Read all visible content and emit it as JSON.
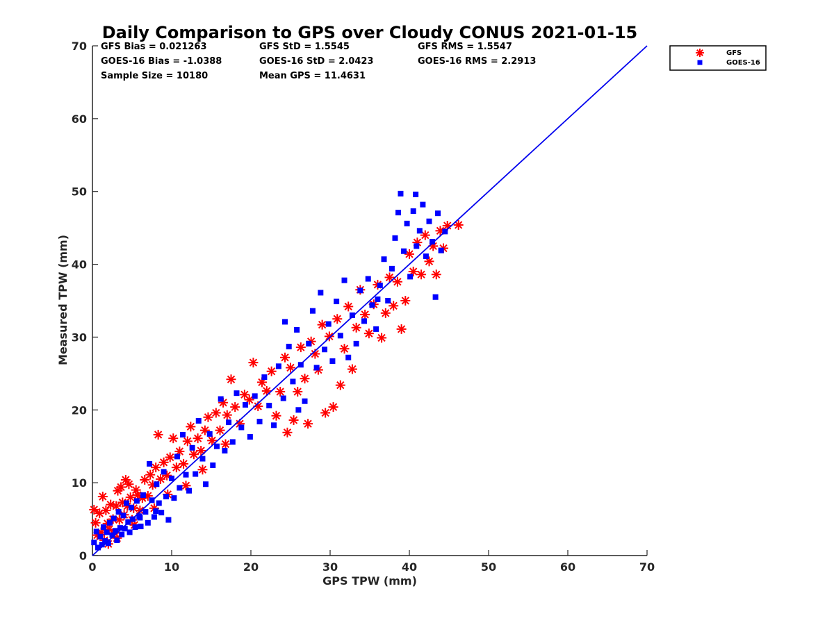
{
  "chart_data": {
    "type": "scatter",
    "title": "Daily Comparison to GPS over Cloudy CONUS 2021-01-15",
    "xlabel": "GPS TPW (mm)",
    "ylabel": "Measured TPW (mm)",
    "xlim": [
      0,
      70
    ],
    "ylim": [
      0,
      70
    ],
    "xticks": [
      "0",
      "10",
      "20",
      "30",
      "40",
      "50",
      "60",
      "70"
    ],
    "yticks": [
      "0",
      "10",
      "20",
      "30",
      "40",
      "50",
      "60",
      "70"
    ],
    "grid": false,
    "legend_position": "outside top-right",
    "stats": [
      "GFS Bias = 0.021263",
      "GFS StD = 1.5545",
      "GFS RMS = 1.5547",
      "GOES-16 Bias = -1.0388",
      "GOES-16 StD = 2.0423",
      "GOES-16 RMS = 2.2913",
      "Sample Size = 10180",
      "Mean GPS = 11.4631"
    ],
    "reference_line": {
      "x": [
        0,
        70
      ],
      "y": [
        0,
        70
      ],
      "color": "#0000ee"
    },
    "series": [
      {
        "name": "GFS",
        "marker": "asterisk",
        "color": "#ff0000",
        "points": [
          [
            0.2,
            6.3
          ],
          [
            0.4,
            4.5
          ],
          [
            0.6,
            2.8
          ],
          [
            0.9,
            5.8
          ],
          [
            1.1,
            3.2
          ],
          [
            1.3,
            8.1
          ],
          [
            1.5,
            2.1
          ],
          [
            1.7,
            6.2
          ],
          [
            1.9,
            4.4
          ],
          [
            2.1,
            3.6
          ],
          [
            2.3,
            7.0
          ],
          [
            2.6,
            5.0
          ],
          [
            2.8,
            3.1
          ],
          [
            3.0,
            6.8
          ],
          [
            3.2,
            8.9
          ],
          [
            3.4,
            4.9
          ],
          [
            3.6,
            9.4
          ],
          [
            3.8,
            7.3
          ],
          [
            4.0,
            5.6
          ],
          [
            4.2,
            10.4
          ],
          [
            4.4,
            6.8
          ],
          [
            4.6,
            9.8
          ],
          [
            4.8,
            8.0
          ],
          [
            5.0,
            4.9
          ],
          [
            5.2,
            6.5
          ],
          [
            5.5,
            9.0
          ],
          [
            5.7,
            8.3
          ],
          [
            6.0,
            6.2
          ],
          [
            6.3,
            7.9
          ],
          [
            6.6,
            10.4
          ],
          [
            7.0,
            8.2
          ],
          [
            7.3,
            11.1
          ],
          [
            7.6,
            9.7
          ],
          [
            8.0,
            12.1
          ],
          [
            8.3,
            16.6
          ],
          [
            8.6,
            10.5
          ],
          [
            9.0,
            12.8
          ],
          [
            9.4,
            11.0
          ],
          [
            9.8,
            13.5
          ],
          [
            10.2,
            16.1
          ],
          [
            10.6,
            12.1
          ],
          [
            11.0,
            14.3
          ],
          [
            11.5,
            12.6
          ],
          [
            12.0,
            15.7
          ],
          [
            12.4,
            17.7
          ],
          [
            12.8,
            13.9
          ],
          [
            13.3,
            16.1
          ],
          [
            13.7,
            14.4
          ],
          [
            14.2,
            17.2
          ],
          [
            14.6,
            19.0
          ],
          [
            15.1,
            15.8
          ],
          [
            15.6,
            19.6
          ],
          [
            16.1,
            17.2
          ],
          [
            16.5,
            21.0
          ],
          [
            17.0,
            19.3
          ],
          [
            17.5,
            24.2
          ],
          [
            18.0,
            20.4
          ],
          [
            18.6,
            18.1
          ],
          [
            19.2,
            22.1
          ],
          [
            19.8,
            21.4
          ],
          [
            20.3,
            26.5
          ],
          [
            20.9,
            20.5
          ],
          [
            21.4,
            23.8
          ],
          [
            22.0,
            22.6
          ],
          [
            22.6,
            25.3
          ],
          [
            23.2,
            19.2
          ],
          [
            23.7,
            22.5
          ],
          [
            24.3,
            27.2
          ],
          [
            24.6,
            16.9
          ],
          [
            25.0,
            25.8
          ],
          [
            25.4,
            18.6
          ],
          [
            25.9,
            22.5
          ],
          [
            26.3,
            28.6
          ],
          [
            26.8,
            24.3
          ],
          [
            27.2,
            18.1
          ],
          [
            27.6,
            29.4
          ],
          [
            28.1,
            27.7
          ],
          [
            28.5,
            25.5
          ],
          [
            29.0,
            31.7
          ],
          [
            29.4,
            19.6
          ],
          [
            29.9,
            30.1
          ],
          [
            30.4,
            20.4
          ],
          [
            30.9,
            32.5
          ],
          [
            31.3,
            23.4
          ],
          [
            31.8,
            28.4
          ],
          [
            32.3,
            34.2
          ],
          [
            32.8,
            25.6
          ],
          [
            33.3,
            31.3
          ],
          [
            33.8,
            36.5
          ],
          [
            34.4,
            33.1
          ],
          [
            34.9,
            30.5
          ],
          [
            35.5,
            34.5
          ],
          [
            36.0,
            37.2
          ],
          [
            36.5,
            29.9
          ],
          [
            37.0,
            33.3
          ],
          [
            37.5,
            38.2
          ],
          [
            38.0,
            34.3
          ],
          [
            38.5,
            37.6
          ],
          [
            39.0,
            31.1
          ],
          [
            39.5,
            35.0
          ],
          [
            40.0,
            41.4
          ],
          [
            40.5,
            39.0
          ],
          [
            41.0,
            43.0
          ],
          [
            41.5,
            38.6
          ],
          [
            42.0,
            44.0
          ],
          [
            42.5,
            40.4
          ],
          [
            43.0,
            42.5
          ],
          [
            43.4,
            38.6
          ],
          [
            43.9,
            44.6
          ],
          [
            44.3,
            42.2
          ],
          [
            44.8,
            45.3
          ],
          [
            46.2,
            45.4
          ],
          [
            2.0,
            1.6
          ],
          [
            3.1,
            2.4
          ],
          [
            5.3,
            4.2
          ],
          [
            7.8,
            6.5
          ],
          [
            9.5,
            8.4
          ],
          [
            11.8,
            9.6
          ],
          [
            13.9,
            11.8
          ],
          [
            16.8,
            15.3
          ]
        ]
      },
      {
        "name": "GOES-16",
        "marker": "square",
        "color": "#0000ff",
        "points": [
          [
            0.2,
            1.8
          ],
          [
            0.5,
            3.3
          ],
          [
            0.7,
            1.1
          ],
          [
            1.0,
            2.6
          ],
          [
            1.2,
            1.5
          ],
          [
            1.4,
            3.9
          ],
          [
            1.6,
            2.0
          ],
          [
            1.8,
            3.2
          ],
          [
            2.0,
            1.7
          ],
          [
            2.2,
            4.5
          ],
          [
            2.5,
            2.8
          ],
          [
            2.7,
            5.1
          ],
          [
            2.9,
            3.4
          ],
          [
            3.1,
            2.1
          ],
          [
            3.3,
            6.0
          ],
          [
            3.5,
            3.8
          ],
          [
            3.7,
            2.9
          ],
          [
            3.9,
            5.5
          ],
          [
            4.1,
            3.7
          ],
          [
            4.3,
            7.2
          ],
          [
            4.5,
            4.6
          ],
          [
            4.7,
            3.2
          ],
          [
            4.9,
            6.6
          ],
          [
            5.1,
            5.0
          ],
          [
            5.4,
            3.9
          ],
          [
            5.6,
            7.5
          ],
          [
            5.9,
            5.4
          ],
          [
            6.1,
            4.0
          ],
          [
            6.4,
            8.3
          ],
          [
            6.7,
            6.0
          ],
          [
            7.0,
            4.5
          ],
          [
            7.2,
            12.6
          ],
          [
            7.5,
            7.6
          ],
          [
            7.8,
            5.3
          ],
          [
            8.1,
            9.8
          ],
          [
            8.4,
            7.2
          ],
          [
            8.7,
            5.9
          ],
          [
            9.0,
            11.5
          ],
          [
            9.3,
            8.1
          ],
          [
            9.6,
            4.9
          ],
          [
            10.0,
            10.6
          ],
          [
            10.3,
            7.9
          ],
          [
            10.7,
            13.6
          ],
          [
            11.0,
            9.3
          ],
          [
            11.4,
            16.6
          ],
          [
            11.8,
            11.1
          ],
          [
            12.2,
            8.9
          ],
          [
            12.6,
            14.8
          ],
          [
            13.0,
            11.2
          ],
          [
            13.4,
            18.5
          ],
          [
            13.9,
            13.3
          ],
          [
            14.3,
            9.8
          ],
          [
            14.8,
            16.7
          ],
          [
            15.2,
            12.4
          ],
          [
            15.7,
            15.0
          ],
          [
            16.2,
            21.5
          ],
          [
            16.7,
            14.4
          ],
          [
            17.2,
            18.3
          ],
          [
            17.7,
            15.6
          ],
          [
            18.2,
            22.3
          ],
          [
            18.8,
            17.6
          ],
          [
            19.3,
            20.7
          ],
          [
            19.9,
            16.3
          ],
          [
            20.5,
            21.9
          ],
          [
            21.1,
            18.4
          ],
          [
            21.7,
            24.5
          ],
          [
            22.3,
            20.6
          ],
          [
            22.9,
            17.9
          ],
          [
            23.5,
            26.0
          ],
          [
            24.1,
            21.6
          ],
          [
            24.3,
            32.1
          ],
          [
            24.8,
            28.7
          ],
          [
            25.3,
            23.9
          ],
          [
            25.8,
            31.0
          ],
          [
            26.3,
            26.2
          ],
          [
            26.8,
            21.2
          ],
          [
            27.3,
            29.1
          ],
          [
            27.8,
            33.6
          ],
          [
            28.3,
            25.8
          ],
          [
            28.8,
            36.1
          ],
          [
            29.3,
            28.3
          ],
          [
            29.8,
            31.8
          ],
          [
            30.3,
            26.7
          ],
          [
            30.8,
            34.9
          ],
          [
            31.3,
            30.2
          ],
          [
            31.8,
            37.8
          ],
          [
            32.3,
            27.2
          ],
          [
            32.8,
            33.0
          ],
          [
            33.3,
            29.1
          ],
          [
            33.8,
            36.4
          ],
          [
            34.3,
            32.2
          ],
          [
            34.8,
            38.0
          ],
          [
            35.3,
            34.4
          ],
          [
            35.8,
            31.1
          ],
          [
            36.3,
            37.1
          ],
          [
            36.8,
            40.7
          ],
          [
            37.3,
            35.0
          ],
          [
            37.8,
            39.4
          ],
          [
            38.2,
            43.6
          ],
          [
            38.6,
            47.1
          ],
          [
            38.9,
            49.7
          ],
          [
            39.3,
            41.8
          ],
          [
            39.7,
            45.6
          ],
          [
            40.1,
            38.3
          ],
          [
            40.5,
            47.3
          ],
          [
            40.9,
            42.5
          ],
          [
            41.3,
            44.6
          ],
          [
            41.7,
            48.2
          ],
          [
            42.1,
            41.1
          ],
          [
            42.5,
            45.9
          ],
          [
            42.9,
            43.1
          ],
          [
            43.3,
            35.5
          ],
          [
            43.6,
            47.0
          ],
          [
            44.0,
            41.9
          ],
          [
            44.5,
            44.5
          ],
          [
            40.8,
            49.6
          ],
          [
            36.0,
            35.2
          ],
          [
            26.0,
            20.0
          ],
          [
            6.0,
            5.2
          ],
          [
            8.0,
            6.1
          ]
        ]
      }
    ]
  }
}
